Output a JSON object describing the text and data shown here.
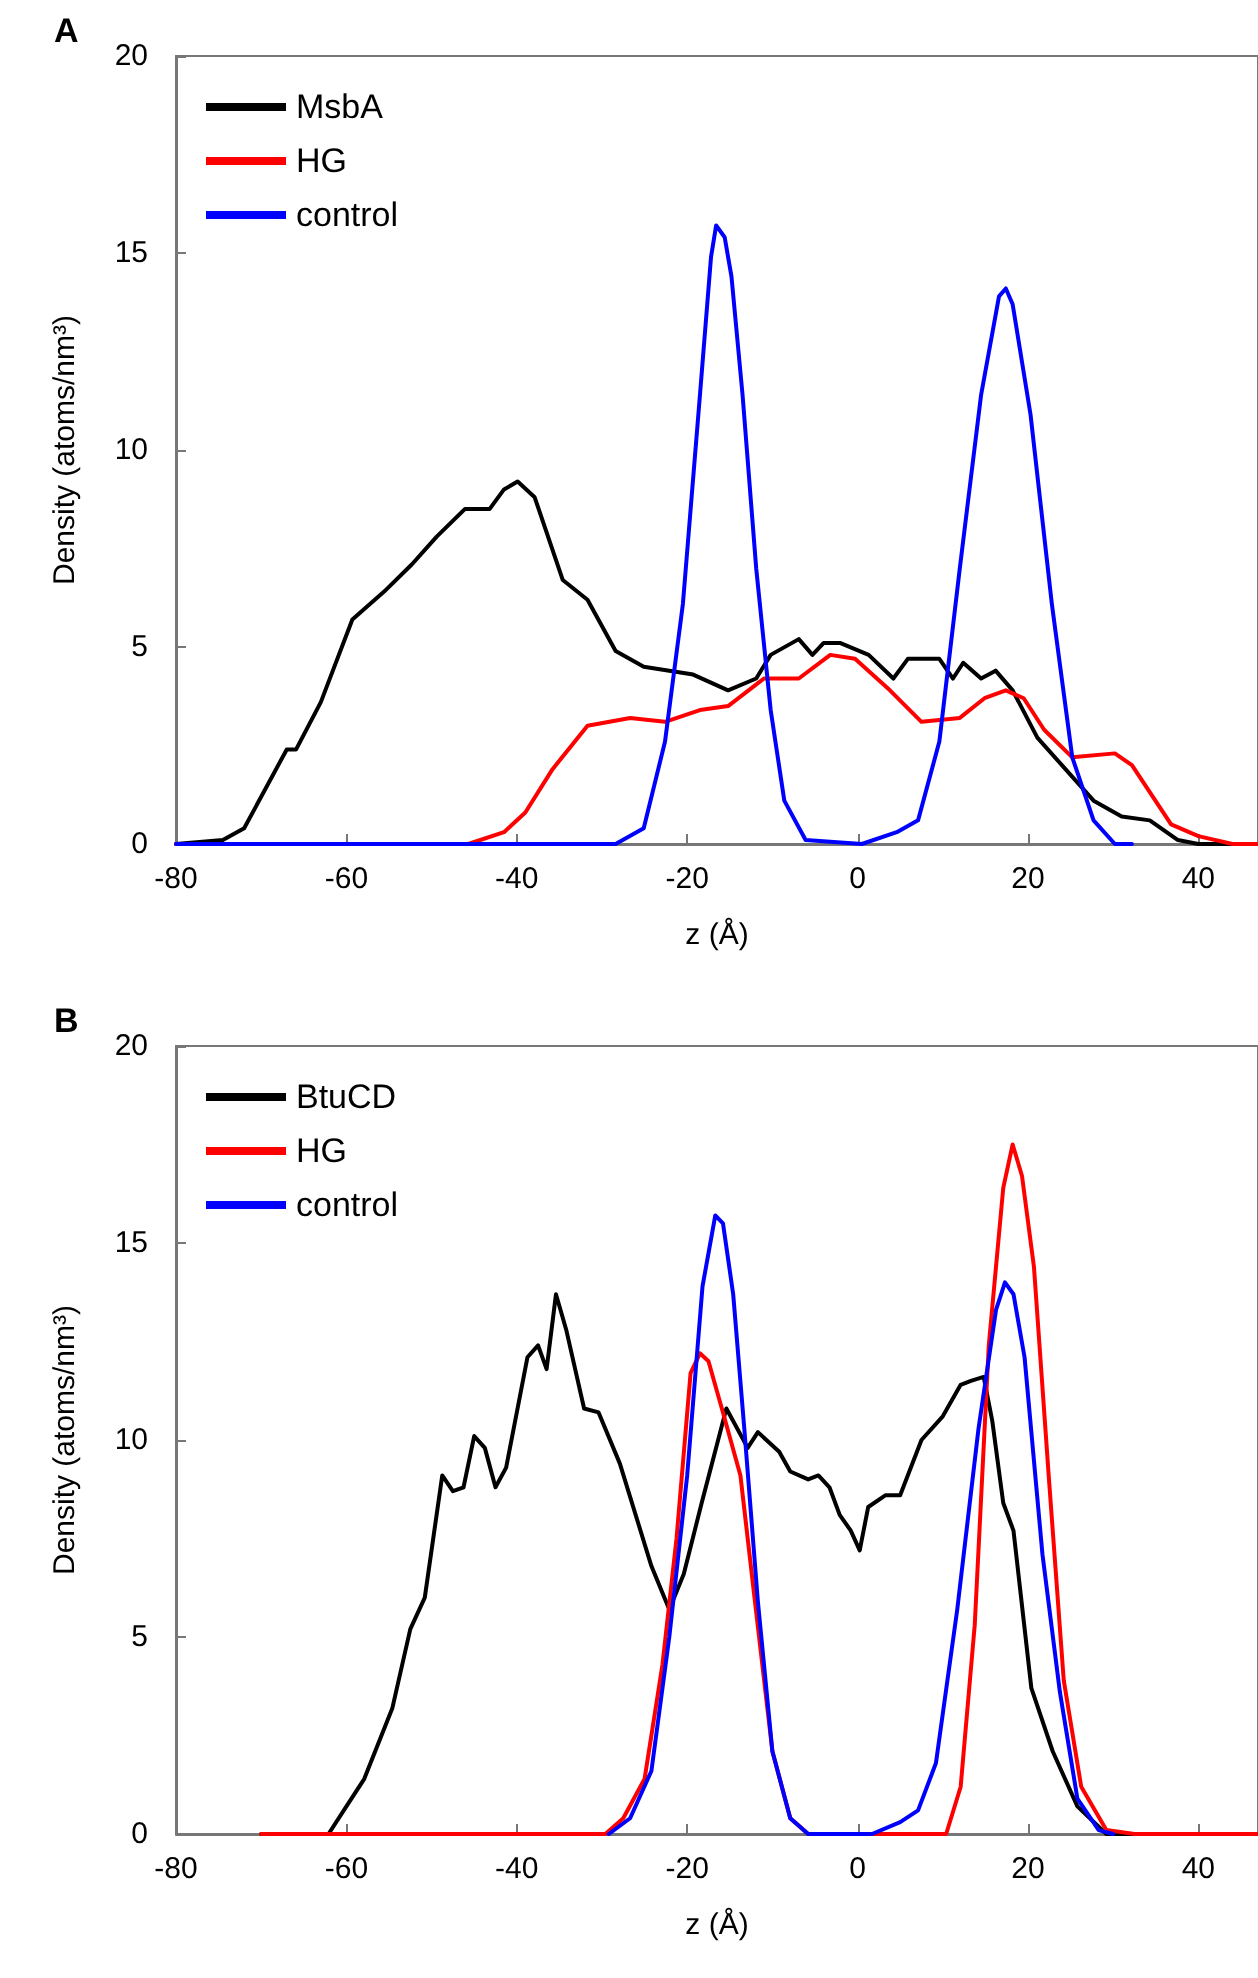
{
  "chart_data": [
    {
      "type": "line",
      "title": "A",
      "xlabel": "z (Å)",
      "ylabel": "Density (atoms/nm³)",
      "xlim": [
        -80,
        47
      ],
      "xticks": [
        -80,
        -60,
        -40,
        -20,
        0,
        20,
        40
      ],
      "ylim": [
        0,
        20
      ],
      "yticks": [
        0,
        5,
        10,
        15,
        20
      ],
      "legend": "top left",
      "grid": false,
      "marker": "none",
      "line_style": "solid",
      "series": [
        {
          "name": "MsbA",
          "color": "#000000",
          "x": [
            -80,
            -74.5,
            -72,
            -67,
            -65.9,
            -63,
            -59.3,
            -55.6,
            -52.3,
            -49.4,
            -46.1,
            -43.2,
            -41.5,
            -39.9,
            -37.9,
            -34.6,
            -31.7,
            -28.4,
            -25.1,
            -19.3,
            -15.2,
            -11.9,
            -10.2,
            -6.9,
            -5.3,
            -4,
            -2,
            1.3,
            4.2,
            5.9,
            9.6,
            11.2,
            12.4,
            14.5,
            16.2,
            18.2,
            21.1,
            24.4,
            27.7,
            31,
            34.3,
            37.6,
            40,
            47
          ],
          "values": [
            0,
            0.1,
            0.4,
            2.4,
            2.4,
            3.6,
            5.7,
            6.4,
            7.1,
            7.8,
            8.5,
            8.5,
            9.0,
            9.2,
            8.8,
            6.7,
            6.2,
            4.9,
            4.5,
            4.3,
            3.9,
            4.2,
            4.8,
            5.2,
            4.8,
            5.1,
            5.1,
            4.8,
            4.2,
            4.7,
            4.7,
            4.2,
            4.6,
            4.2,
            4.4,
            3.9,
            2.7,
            1.9,
            1.1,
            0.7,
            0.6,
            0.1,
            0,
            0
          ]
        },
        {
          "name": "HG",
          "color": "#ff0000",
          "x": [
            -80,
            -45.7,
            -41.5,
            -39,
            -35.8,
            -31.7,
            -26.7,
            -22.6,
            -18.5,
            -15.2,
            -11,
            -6.9,
            -3.2,
            -0.3,
            3.8,
            7.5,
            12,
            14.9,
            17.4,
            19.5,
            21.9,
            25.2,
            30.2,
            32.2,
            36.8,
            40,
            44,
            47
          ],
          "values": [
            0,
            0,
            0.3,
            0.8,
            1.9,
            3.0,
            3.2,
            3.1,
            3.4,
            3.5,
            4.2,
            4.2,
            4.8,
            4.7,
            3.9,
            3.1,
            3.2,
            3.7,
            3.9,
            3.7,
            2.9,
            2.2,
            2.3,
            2.0,
            0.5,
            0.2,
            0,
            0
          ]
        },
        {
          "name": "control",
          "color": "#0000ff",
          "x": [
            -80,
            -28.4,
            -25.1,
            -22.6,
            -20.5,
            -18.5,
            -17.2,
            -16.6,
            -15.6,
            -14.8,
            -13.5,
            -11.9,
            -10.2,
            -8.6,
            -6.1,
            0.5,
            4.6,
            7.1,
            9.6,
            12,
            14.5,
            16.6,
            17.4,
            18.2,
            20.3,
            22.8,
            25.2,
            27.7,
            30.2,
            32.2
          ],
          "values": [
            0,
            0,
            0.4,
            2.6,
            6.1,
            11.4,
            14.9,
            15.7,
            15.4,
            14.4,
            11.4,
            7.0,
            3.4,
            1.1,
            0.1,
            0,
            0.3,
            0.6,
            2.6,
            7.0,
            11.4,
            13.9,
            14.1,
            13.7,
            10.9,
            6.1,
            2.2,
            0.6,
            0,
            0
          ]
        }
      ]
    },
    {
      "type": "line",
      "title": "B",
      "xlabel": "z (Å)",
      "ylabel": "Density (atoms/nm³)",
      "xlim": [
        -80,
        47
      ],
      "xticks": [
        -80,
        -60,
        -40,
        -20,
        0,
        20,
        40
      ],
      "ylim": [
        0,
        20
      ],
      "yticks": [
        0,
        5,
        10,
        15,
        20
      ],
      "legend": "top left",
      "grid": false,
      "marker": "none",
      "line_style": "solid",
      "series": [
        {
          "name": "BtuCD",
          "color": "#000000",
          "x": [
            -70,
            -62.1,
            -60,
            -57.9,
            -54.6,
            -52.5,
            -50.8,
            -48.75,
            -47.5,
            -46.25,
            -45,
            -43.75,
            -42.5,
            -41.25,
            -38.75,
            -37.5,
            -36.5,
            -35.4,
            -34.2,
            -32.1,
            -30.4,
            -27.9,
            -24.2,
            -22.1,
            -20.4,
            -18.3,
            -15.4,
            -12.9,
            -11.7,
            -9.2,
            -7.9,
            -5.8,
            -4.6,
            -3.3,
            -2.1,
            -0.8,
            0.25,
            1.25,
            3.3,
            5,
            7.5,
            10,
            12.1,
            13.3,
            14.8,
            15.8,
            17.1,
            18.3,
            20.4,
            22.9,
            25.8,
            29.2,
            34,
            47
          ],
          "values": [
            0,
            0,
            0.7,
            1.4,
            3.2,
            5.2,
            6.0,
            9.1,
            8.7,
            8.8,
            10.1,
            9.8,
            8.8,
            9.3,
            12.1,
            12.4,
            11.8,
            13.7,
            12.8,
            10.8,
            10.7,
            9.4,
            6.8,
            5.7,
            6.6,
            8.4,
            10.8,
            9.8,
            10.2,
            9.7,
            9.2,
            9.0,
            9.1,
            8.8,
            8.1,
            7.7,
            7.2,
            8.3,
            8.6,
            8.6,
            10.0,
            10.6,
            11.4,
            11.5,
            11.6,
            10.5,
            8.4,
            7.7,
            3.7,
            2.1,
            0.7,
            0,
            0,
            0
          ]
        },
        {
          "name": "HG",
          "color": "#ff0000",
          "x": [
            -70,
            -29.6,
            -27.5,
            -25,
            -22.9,
            -21.25,
            -19.6,
            -18.5,
            -17.5,
            -15.8,
            -13.75,
            -12.1,
            -10,
            -7.9,
            -5.8,
            10.4,
            12.1,
            13.75,
            15.4,
            17.1,
            18.2,
            19.3,
            20.7,
            22.5,
            24.2,
            26.25,
            29.2,
            32.5,
            47
          ],
          "values": [
            0,
            0,
            0.4,
            1.4,
            4.3,
            7.5,
            11.7,
            12.2,
            12.0,
            10.7,
            9.1,
            6.0,
            2.1,
            0.4,
            0,
            0,
            1.2,
            5.3,
            12.4,
            16.4,
            17.5,
            16.7,
            14.4,
            8.9,
            3.9,
            1.2,
            0.1,
            0,
            0
          ]
        },
        {
          "name": "control",
          "color": "#0000ff",
          "x": [
            -29.2,
            -26.7,
            -24.2,
            -22.1,
            -20,
            -18.2,
            -16.7,
            -15.8,
            -14.6,
            -13.3,
            -11.7,
            -10,
            -7.9,
            -5.8,
            1.7,
            5,
            7.1,
            9.2,
            11.7,
            14.2,
            16.25,
            17.3,
            18.3,
            19.6,
            21.7,
            23.75,
            25.8,
            28.3,
            30
          ],
          "values": [
            0,
            0.4,
            1.6,
            5.0,
            9.1,
            13.9,
            15.7,
            15.5,
            13.7,
            10.3,
            5.9,
            2.1,
            0.4,
            0,
            0,
            0.3,
            0.6,
            1.8,
            5.7,
            10.3,
            13.3,
            14.0,
            13.7,
            12.1,
            7.1,
            3.6,
            0.9,
            0.1,
            0
          ]
        }
      ]
    }
  ]
}
